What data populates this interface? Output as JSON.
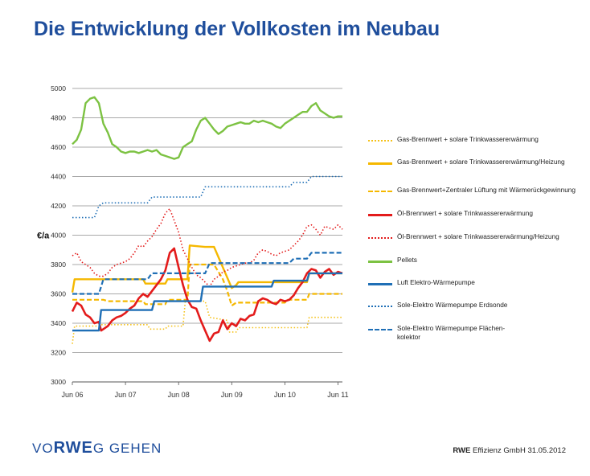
{
  "page": {
    "title": "Die Entwicklung der Vollkosten im Neubau",
    "logo": {
      "part1": "VO",
      "part2": "RWE",
      "part3": "G GEHEN"
    },
    "footer": {
      "company": "RWE",
      "rest": " Effizienz GmbH  31.05.2012"
    }
  },
  "chart_data": {
    "type": "line",
    "title": "",
    "ylabel": "€/a",
    "xlabel": "",
    "ylim": [
      3000,
      5000
    ],
    "yticks": [
      3000,
      3200,
      3400,
      3600,
      3800,
      4000,
      4200,
      4400,
      4600,
      4800,
      5000
    ],
    "xlim": [
      0,
      61
    ],
    "xticks": [
      {
        "label": "Jun 06",
        "x": 0
      },
      {
        "label": "Jun 07",
        "x": 12
      },
      {
        "label": "Jun 08",
        "x": 24
      },
      {
        "label": "Jun 09",
        "x": 36
      },
      {
        "label": "Jun 10",
        "x": 48
      },
      {
        "label": "Jun 11",
        "x": 60
      }
    ],
    "grid": "horizontal",
    "legend_position": "right",
    "series": [
      {
        "name": "Gas-Brennwert + solare Trinkwassererwärmung",
        "color": "#f5c116",
        "style": "dotted",
        "points": [
          [
            0,
            3260
          ],
          [
            0.5,
            3380
          ],
          [
            6,
            3380
          ],
          [
            6.5,
            3390
          ],
          [
            12,
            3390
          ],
          [
            17,
            3390
          ],
          [
            17.5,
            3360
          ],
          [
            21,
            3360
          ],
          [
            21.5,
            3380
          ],
          [
            25,
            3380
          ],
          [
            25.5,
            3550
          ],
          [
            30,
            3550
          ],
          [
            31,
            3440
          ],
          [
            35,
            3420
          ],
          [
            35.5,
            3340
          ],
          [
            37,
            3340
          ],
          [
            37.5,
            3370
          ],
          [
            53,
            3370
          ],
          [
            53.5,
            3440
          ],
          [
            61,
            3440
          ]
        ]
      },
      {
        "name": "Gas-Brennwert + solare Trinkwassererwärmung/Heizung",
        "color": "#f5b800",
        "style": "solid",
        "points": [
          [
            0,
            3610
          ],
          [
            0.5,
            3700
          ],
          [
            6,
            3700
          ],
          [
            6.5,
            3700
          ],
          [
            16,
            3700
          ],
          [
            16.5,
            3670
          ],
          [
            21,
            3670
          ],
          [
            21.5,
            3700
          ],
          [
            26,
            3700
          ],
          [
            26.5,
            3930
          ],
          [
            30,
            3920
          ],
          [
            32,
            3920
          ],
          [
            34,
            3780
          ],
          [
            36,
            3640
          ],
          [
            37,
            3660
          ],
          [
            37.5,
            3680
          ],
          [
            49,
            3680
          ],
          [
            49.5,
            3680
          ],
          [
            53,
            3680
          ],
          [
            53.5,
            3740
          ],
          [
            61,
            3740
          ]
        ]
      },
      {
        "name": "Gas-Brennwert+Zentraler Lüftung mit Wärmerückgewinnung",
        "color": "#f5b800",
        "style": "dashed",
        "points": [
          [
            0,
            3560
          ],
          [
            7,
            3560
          ],
          [
            8,
            3550
          ],
          [
            16,
            3550
          ],
          [
            16.5,
            3530
          ],
          [
            21,
            3530
          ],
          [
            21.5,
            3560
          ],
          [
            26,
            3560
          ],
          [
            26.5,
            3800
          ],
          [
            31,
            3800
          ],
          [
            32,
            3800
          ],
          [
            34,
            3700
          ],
          [
            35,
            3620
          ],
          [
            36,
            3520
          ],
          [
            37,
            3540
          ],
          [
            48,
            3540
          ],
          [
            48.5,
            3560
          ],
          [
            53,
            3560
          ],
          [
            53.5,
            3600
          ],
          [
            61,
            3600
          ]
        ]
      },
      {
        "name": "Öl-Brennwert + solare Trinkwassererwärmung",
        "color": "#e31b1b",
        "style": "solid",
        "points": [
          [
            0,
            3480
          ],
          [
            1,
            3540
          ],
          [
            2,
            3520
          ],
          [
            3,
            3460
          ],
          [
            4,
            3440
          ],
          [
            5,
            3400
          ],
          [
            6,
            3410
          ],
          [
            6.5,
            3350
          ],
          [
            7,
            3360
          ],
          [
            8,
            3380
          ],
          [
            9,
            3420
          ],
          [
            10,
            3440
          ],
          [
            11,
            3450
          ],
          [
            12,
            3470
          ],
          [
            13,
            3500
          ],
          [
            14,
            3520
          ],
          [
            15,
            3570
          ],
          [
            16,
            3600
          ],
          [
            17,
            3580
          ],
          [
            18,
            3620
          ],
          [
            19,
            3660
          ],
          [
            20,
            3700
          ],
          [
            21,
            3760
          ],
          [
            22,
            3880
          ],
          [
            23,
            3910
          ],
          [
            24,
            3780
          ],
          [
            25,
            3660
          ],
          [
            26,
            3560
          ],
          [
            27,
            3510
          ],
          [
            28,
            3500
          ],
          [
            29,
            3420
          ],
          [
            30,
            3350
          ],
          [
            31,
            3280
          ],
          [
            32,
            3330
          ],
          [
            33,
            3340
          ],
          [
            34,
            3420
          ],
          [
            35,
            3360
          ],
          [
            36,
            3400
          ],
          [
            37,
            3380
          ],
          [
            38,
            3430
          ],
          [
            39,
            3420
          ],
          [
            40,
            3450
          ],
          [
            41,
            3460
          ],
          [
            42,
            3550
          ],
          [
            43,
            3570
          ],
          [
            44,
            3560
          ],
          [
            45,
            3540
          ],
          [
            46,
            3530
          ],
          [
            47,
            3560
          ],
          [
            48,
            3550
          ],
          [
            49,
            3560
          ],
          [
            50,
            3590
          ],
          [
            51,
            3640
          ],
          [
            52,
            3680
          ],
          [
            53,
            3740
          ],
          [
            54,
            3770
          ],
          [
            55,
            3760
          ],
          [
            56,
            3710
          ],
          [
            57,
            3750
          ],
          [
            58,
            3770
          ],
          [
            59,
            3730
          ],
          [
            60,
            3750
          ],
          [
            61,
            3740
          ]
        ]
      },
      {
        "name": "Öl-Brennwert + solare Trinkwassererwärmung/Heizung",
        "color": "#e31b1b",
        "style": "dotted",
        "points": [
          [
            0,
            3860
          ],
          [
            1,
            3880
          ],
          [
            2,
            3820
          ],
          [
            3,
            3800
          ],
          [
            4,
            3780
          ],
          [
            5,
            3740
          ],
          [
            6,
            3720
          ],
          [
            7,
            3720
          ],
          [
            8,
            3740
          ],
          [
            9,
            3780
          ],
          [
            10,
            3800
          ],
          [
            11,
            3810
          ],
          [
            12,
            3820
          ],
          [
            13,
            3840
          ],
          [
            14,
            3880
          ],
          [
            15,
            3930
          ],
          [
            16,
            3920
          ],
          [
            17,
            3960
          ],
          [
            18,
            3990
          ],
          [
            19,
            4040
          ],
          [
            20,
            4080
          ],
          [
            21,
            4150
          ],
          [
            22,
            4180
          ],
          [
            23,
            4100
          ],
          [
            24,
            4020
          ],
          [
            25,
            3900
          ],
          [
            26,
            3840
          ],
          [
            27,
            3780
          ],
          [
            28,
            3730
          ],
          [
            29,
            3710
          ],
          [
            30,
            3680
          ],
          [
            31,
            3650
          ],
          [
            32,
            3700
          ],
          [
            33,
            3720
          ],
          [
            34,
            3750
          ],
          [
            35,
            3760
          ],
          [
            36,
            3780
          ],
          [
            37,
            3790
          ],
          [
            38,
            3800
          ],
          [
            39,
            3810
          ],
          [
            40,
            3810
          ],
          [
            41,
            3830
          ],
          [
            42,
            3880
          ],
          [
            43,
            3900
          ],
          [
            44,
            3890
          ],
          [
            45,
            3870
          ],
          [
            46,
            3860
          ],
          [
            47,
            3880
          ],
          [
            48,
            3890
          ],
          [
            49,
            3900
          ],
          [
            50,
            3930
          ],
          [
            51,
            3960
          ],
          [
            52,
            4000
          ],
          [
            53,
            4060
          ],
          [
            54,
            4070
          ],
          [
            55,
            4040
          ],
          [
            56,
            4000
          ],
          [
            57,
            4060
          ],
          [
            58,
            4050
          ],
          [
            59,
            4040
          ],
          [
            60,
            4070
          ],
          [
            61,
            4040
          ]
        ]
      },
      {
        "name": "Pellets",
        "color": "#7cc242",
        "style": "solid",
        "points": [
          [
            0,
            4620
          ],
          [
            1,
            4650
          ],
          [
            2,
            4720
          ],
          [
            3,
            4900
          ],
          [
            4,
            4930
          ],
          [
            5,
            4940
          ],
          [
            6,
            4900
          ],
          [
            7,
            4760
          ],
          [
            8,
            4700
          ],
          [
            9,
            4620
          ],
          [
            10,
            4600
          ],
          [
            11,
            4570
          ],
          [
            12,
            4560
          ],
          [
            13,
            4570
          ],
          [
            14,
            4570
          ],
          [
            15,
            4560
          ],
          [
            16,
            4570
          ],
          [
            17,
            4580
          ],
          [
            18,
            4570
          ],
          [
            19,
            4580
          ],
          [
            20,
            4550
          ],
          [
            21,
            4540
          ],
          [
            22,
            4530
          ],
          [
            23,
            4520
          ],
          [
            24,
            4530
          ],
          [
            25,
            4600
          ],
          [
            26,
            4620
          ],
          [
            27,
            4640
          ],
          [
            28,
            4720
          ],
          [
            29,
            4780
          ],
          [
            30,
            4800
          ],
          [
            31,
            4760
          ],
          [
            32,
            4720
          ],
          [
            33,
            4690
          ],
          [
            34,
            4710
          ],
          [
            35,
            4740
          ],
          [
            36,
            4750
          ],
          [
            37,
            4760
          ],
          [
            38,
            4770
          ],
          [
            39,
            4760
          ],
          [
            40,
            4760
          ],
          [
            41,
            4780
          ],
          [
            42,
            4770
          ],
          [
            43,
            4780
          ],
          [
            44,
            4770
          ],
          [
            45,
            4760
          ],
          [
            46,
            4740
          ],
          [
            47,
            4730
          ],
          [
            48,
            4760
          ],
          [
            49,
            4780
          ],
          [
            50,
            4800
          ],
          [
            51,
            4820
          ],
          [
            52,
            4840
          ],
          [
            53,
            4840
          ],
          [
            54,
            4880
          ],
          [
            55,
            4900
          ],
          [
            56,
            4850
          ],
          [
            57,
            4830
          ],
          [
            58,
            4810
          ],
          [
            59,
            4800
          ],
          [
            60,
            4810
          ],
          [
            61,
            4810
          ]
        ]
      },
      {
        "name": "Luft Elektro-Wärmepumpe",
        "color": "#1f6fb6",
        "style": "solid",
        "points": [
          [
            0,
            3350
          ],
          [
            6,
            3350
          ],
          [
            6.5,
            3490
          ],
          [
            13,
            3490
          ],
          [
            18,
            3490
          ],
          [
            18.5,
            3550
          ],
          [
            29,
            3550
          ],
          [
            29.5,
            3650
          ],
          [
            36,
            3650
          ],
          [
            45,
            3650
          ],
          [
            45.5,
            3690
          ],
          [
            53,
            3690
          ],
          [
            53.5,
            3740
          ],
          [
            61,
            3740
          ]
        ]
      },
      {
        "name": "Sole-Elektro Wärmepumpe Erdsonde",
        "color": "#1f6fb6",
        "style": "dotted",
        "points": [
          [
            0,
            4120
          ],
          [
            5,
            4120
          ],
          [
            6,
            4200
          ],
          [
            7,
            4220
          ],
          [
            17,
            4220
          ],
          [
            18,
            4260
          ],
          [
            29,
            4260
          ],
          [
            30,
            4330
          ],
          [
            40,
            4330
          ],
          [
            41,
            4330
          ],
          [
            49,
            4330
          ],
          [
            50,
            4360
          ],
          [
            53,
            4360
          ],
          [
            54,
            4400
          ],
          [
            61,
            4400
          ]
        ]
      },
      {
        "name": "Sole-Elektro Wärmepumpe Flächenkollektor",
        "color": "#1f6fb6",
        "style": "dashed",
        "points": [
          [
            0,
            3600
          ],
          [
            6,
            3600
          ],
          [
            7,
            3700
          ],
          [
            17,
            3700
          ],
          [
            18,
            3740
          ],
          [
            30,
            3740
          ],
          [
            31,
            3810
          ],
          [
            41,
            3810
          ],
          [
            49,
            3810
          ],
          [
            50,
            3840
          ],
          [
            53,
            3840
          ],
          [
            54,
            3880
          ],
          [
            61,
            3880
          ]
        ]
      }
    ]
  },
  "legend_labels": [
    "Gas-Brennwert + solare Trinkwassererwärmung",
    "Gas-Brennwert + solare Trinkwassererwärmung/Heizung",
    "Gas-Brennwert+Zentraler Lüftung mit Wärmerückgewinnung",
    "Öl-Brennwert + solare Trinkwassererwärmung",
    "Öl-Brennwert + solare Trinkwassererwärmung/Heizung",
    "Pellets",
    "Luft Elektro-Wärmepumpe",
    "Sole-Elektro Wärmepumpe Erdsonde",
    "Sole-Elektro Wärmepumpe Flächen-kolektor"
  ]
}
